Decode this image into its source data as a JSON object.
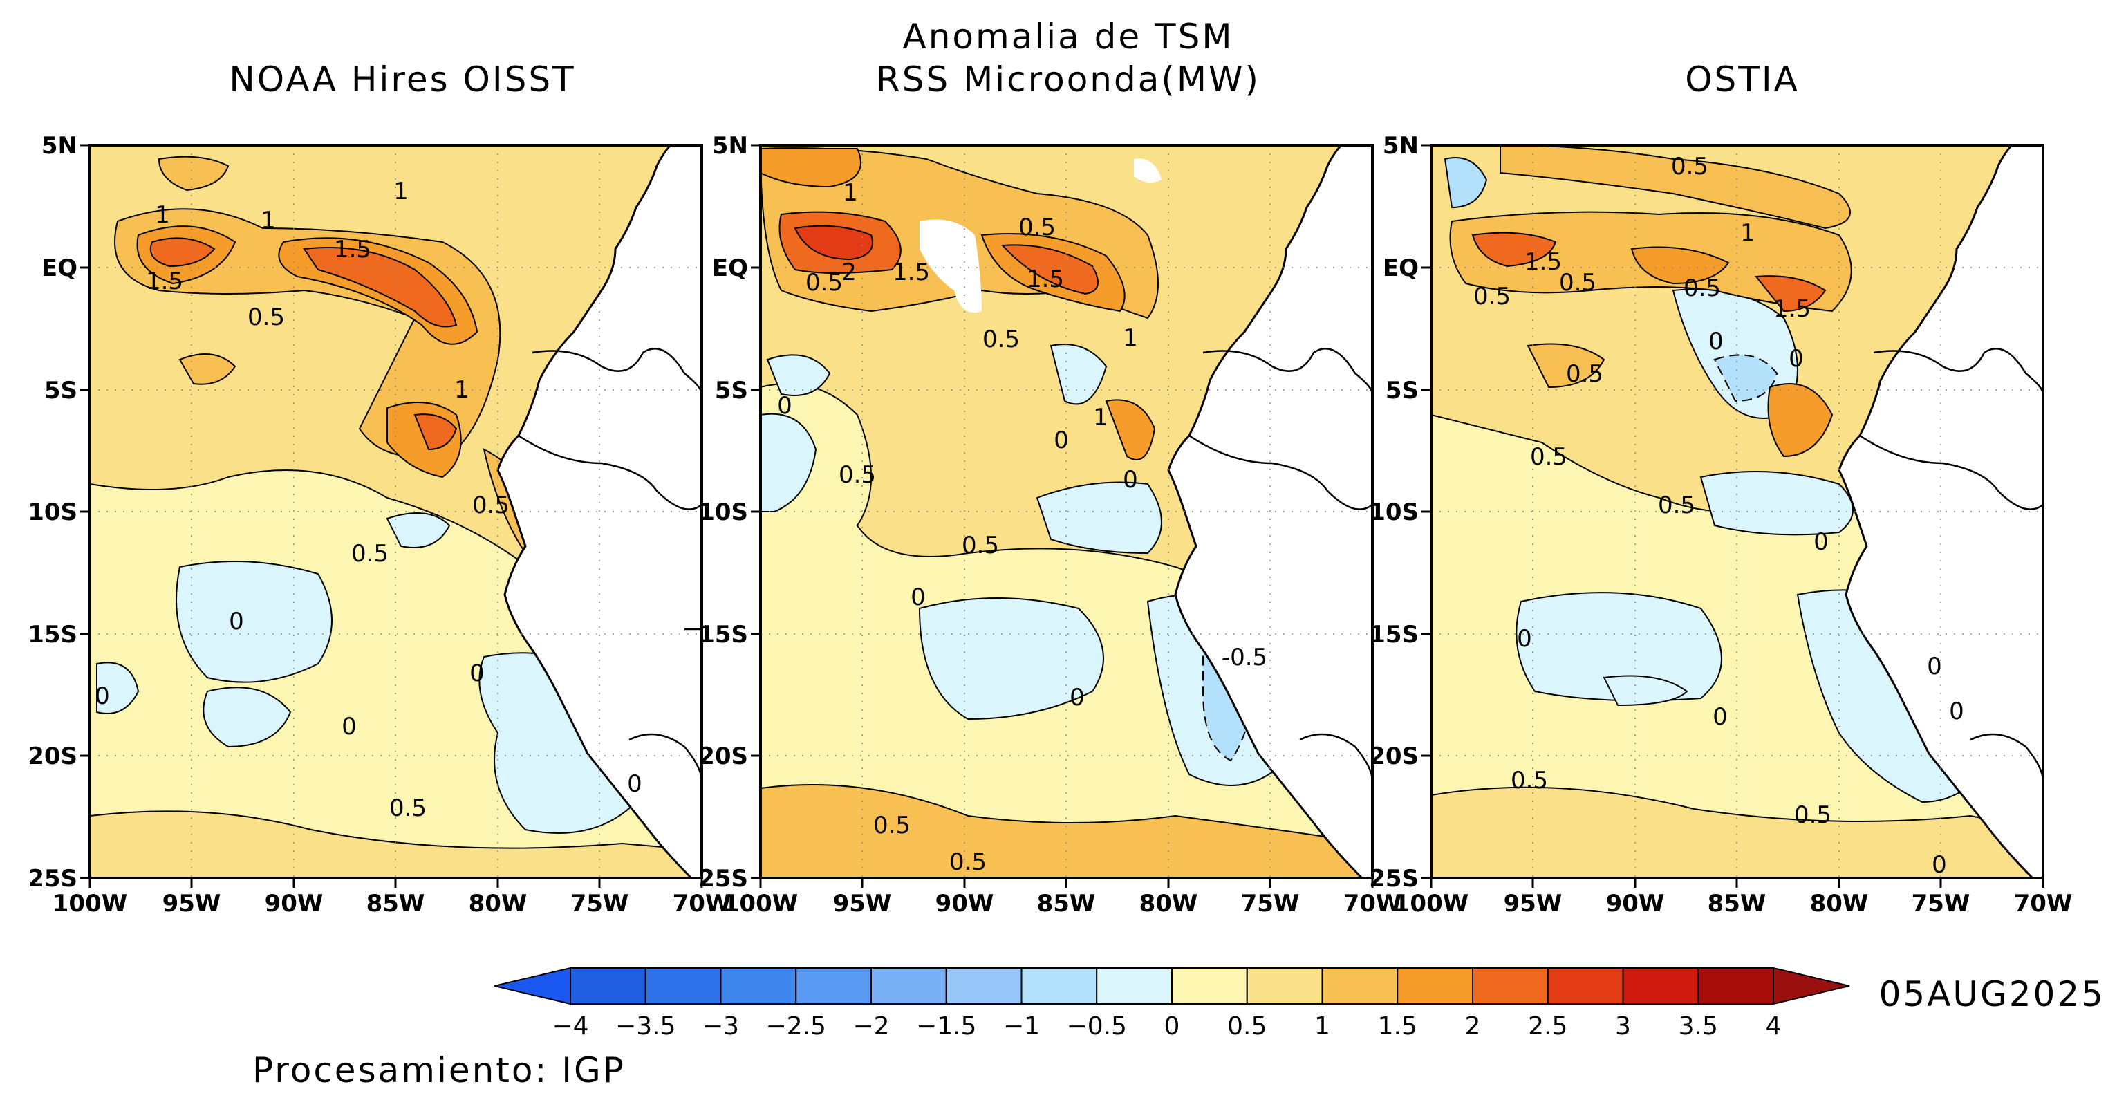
{
  "figure": {
    "main_title_line1": "Anomalia de TSM",
    "date": "05AUG2025",
    "credit": "Procesamiento: IGP"
  },
  "panels": [
    {
      "title": "NOAA Hires OISST",
      "labels": [
        "1",
        "1",
        "1",
        "1.5",
        "1.5",
        "0.5",
        "1",
        "0.5",
        "0.5",
        "0",
        "0",
        "0",
        "0",
        "0",
        "0.5"
      ]
    },
    {
      "title": "RSS Microonda(MW)",
      "labels": [
        "1",
        "0.5",
        "0.5",
        "2",
        "1.5",
        "1.5",
        "0.5",
        "1",
        "0",
        "0.5",
        "1",
        "0",
        "0.5",
        "0",
        "-0.5",
        "0",
        "0",
        "0.5",
        "0.5"
      ]
    },
    {
      "title": "OSTIA",
      "labels": [
        "0.5",
        "1",
        "1.5",
        "0.5",
        "0.5",
        "0.5",
        "1.5",
        "0",
        "0",
        "0.5",
        "0.5",
        "0.5",
        "0",
        "0",
        "0",
        "0",
        "0",
        "0.5",
        "0.5",
        "0"
      ]
    }
  ],
  "axes": {
    "lat_ticks": [
      "5N",
      "EQ",
      "5S",
      "10S",
      "15S",
      "20S",
      "25S"
    ],
    "lon_ticks": [
      "100W",
      "95W",
      "90W",
      "85W",
      "80W",
      "75W",
      "70W"
    ]
  },
  "colorbar": {
    "labels": [
      "-4",
      "-3.5",
      "-3",
      "-2.5",
      "-2",
      "-1.5",
      "-1",
      "-0.5",
      "0",
      "0.5",
      "1",
      "1.5",
      "2",
      "2.5",
      "3",
      "3.5",
      "4"
    ],
    "colors": [
      "#1f5fe0",
      "#2f72ea",
      "#3e86ee",
      "#5a99f2",
      "#7ab1f5",
      "#97c7f8",
      "#b3e1fb",
      "#dbf5fd",
      "#fcf6b2",
      "#fbe08a",
      "#f8bf52",
      "#f59c2a",
      "#ef6a1e",
      "#e23b16",
      "#cf1b10",
      "#a80c08"
    ],
    "under_color": "#1a57f0",
    "over_color": "#9a0f0f"
  }
}
